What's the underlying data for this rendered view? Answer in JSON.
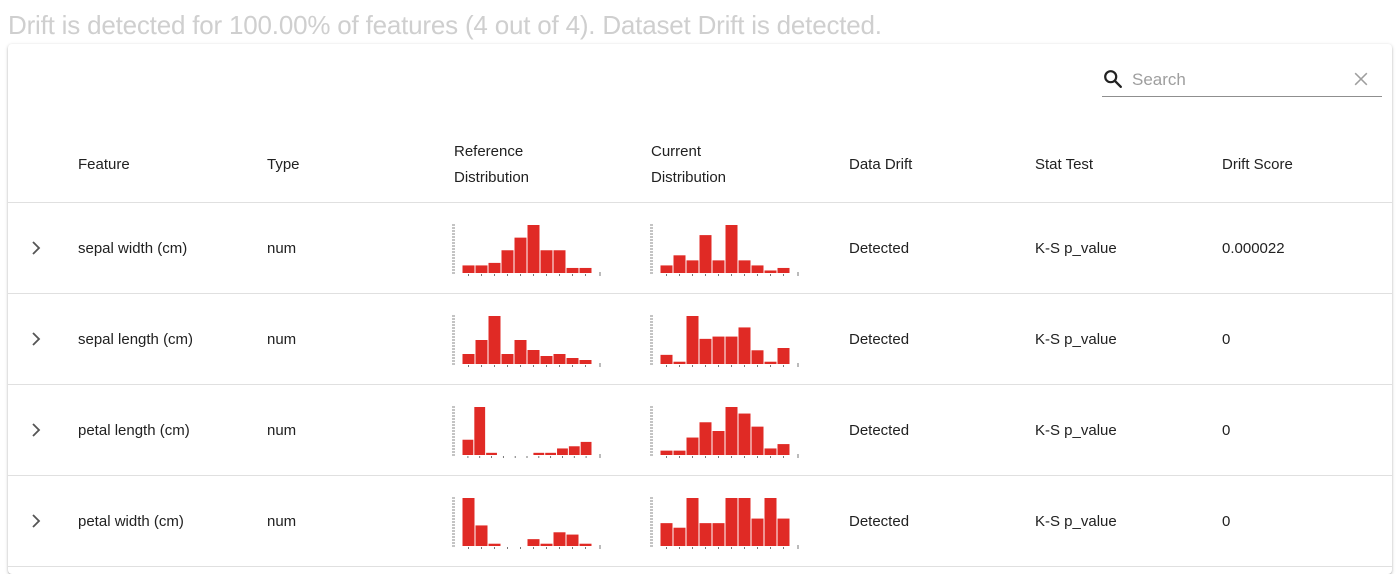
{
  "summary_text": "Drift is detected for 100.00% of features (4 out of 4). Dataset Drift is detected.",
  "search": {
    "placeholder": "Search",
    "value": ""
  },
  "icons": {
    "search": "search-icon",
    "clear": "close-icon",
    "expand": "chevron-right-icon"
  },
  "colors": {
    "bar": "#e02a25",
    "axis": "#555555"
  },
  "columns": {
    "feature": "Feature",
    "type": "Type",
    "reference_distribution": [
      "Reference",
      "Distribution"
    ],
    "current_distribution": [
      "Current",
      "Distribution"
    ],
    "data_drift": "Data Drift",
    "stat_test": "Stat Test",
    "drift_score": "Drift Score"
  },
  "rows": [
    {
      "feature": "sepal width (cm)",
      "type": "num",
      "data_drift": "Detected",
      "stat_test": "K-S p_value",
      "drift_score": "0.000022",
      "reference_hist": [
        3,
        3,
        4,
        9,
        14,
        19,
        9,
        9,
        2,
        2
      ],
      "current_hist": [
        3,
        7,
        5,
        15,
        5,
        19,
        5,
        3,
        1,
        2
      ]
    },
    {
      "feature": "sepal length (cm)",
      "type": "num",
      "data_drift": "Detected",
      "stat_test": "K-S p_value",
      "drift_score": "0",
      "reference_hist": [
        5,
        12,
        24,
        5,
        12,
        7,
        4,
        5,
        3,
        2
      ],
      "current_hist": [
        4,
        1,
        21,
        11,
        12,
        12,
        16,
        6,
        1,
        7
      ]
    },
    {
      "feature": "petal length (cm)",
      "type": "num",
      "data_drift": "Detected",
      "stat_test": "K-S p_value",
      "drift_score": "0",
      "reference_hist": [
        7,
        22,
        1,
        0,
        0,
        0,
        1,
        1,
        3,
        4,
        6
      ],
      "current_hist": [
        2,
        2,
        8,
        15,
        11,
        22,
        19,
        13,
        3,
        5
      ]
    },
    {
      "feature": "petal width (cm)",
      "type": "num",
      "data_drift": "Detected",
      "stat_test": "K-S p_value",
      "drift_score": "0",
      "reference_hist": [
        21,
        9,
        1,
        0,
        0,
        3,
        1,
        6,
        5,
        1
      ],
      "current_hist": [
        10,
        8,
        21,
        10,
        10,
        21,
        21,
        12,
        21,
        12
      ]
    }
  ]
}
